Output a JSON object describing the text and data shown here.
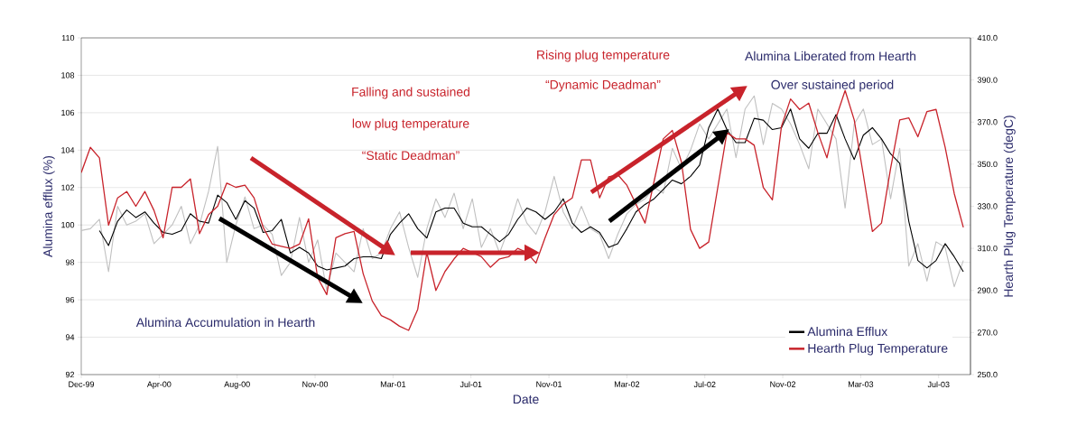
{
  "chart_data": {
    "type": "line",
    "xlabel": "Date",
    "ylabel": "Alumina efflux (%)",
    "y2label": "Hearth Plug Temperature (degC)",
    "x": [
      "1999-12-05",
      "1999-12-19",
      "2000-01-02",
      "2000-01-16",
      "2000-01-30",
      "2000-02-13",
      "2000-02-27",
      "2000-03-12",
      "2000-03-26",
      "2000-04-09",
      "2000-04-23",
      "2000-05-07",
      "2000-05-21",
      "2000-06-04",
      "2000-06-18",
      "2000-07-02",
      "2000-07-16",
      "2000-07-30",
      "2000-08-13",
      "2000-08-27",
      "2000-09-10",
      "2000-09-24",
      "2000-10-08",
      "2000-10-22",
      "2000-11-05",
      "2000-11-19",
      "2000-12-03",
      "2000-12-17",
      "2000-12-31",
      "2001-01-14",
      "2001-01-28",
      "2001-02-11",
      "2001-02-25",
      "2001-03-11",
      "2001-03-25",
      "2001-04-08",
      "2001-04-22",
      "2001-05-06",
      "2001-05-20",
      "2001-06-03",
      "2001-06-17",
      "2001-07-01",
      "2001-07-15",
      "2001-07-29",
      "2001-08-12",
      "2001-08-26",
      "2001-09-09",
      "2001-09-23",
      "2001-10-07",
      "2001-10-21",
      "2001-11-04",
      "2001-11-18",
      "2001-12-02",
      "2001-12-16",
      "2001-12-30",
      "2002-01-13",
      "2002-01-27",
      "2002-02-10",
      "2002-02-24",
      "2002-03-10",
      "2002-03-24",
      "2002-04-07",
      "2002-04-21",
      "2002-05-05",
      "2002-05-19",
      "2002-06-02",
      "2002-06-16",
      "2002-06-30",
      "2002-07-14",
      "2002-07-28",
      "2002-08-11",
      "2002-08-25",
      "2002-09-08",
      "2002-09-22",
      "2002-10-06",
      "2002-10-20",
      "2002-11-03",
      "2002-11-17",
      "2002-12-01",
      "2002-12-15",
      "2002-12-29",
      "2003-01-12",
      "2003-01-26",
      "2003-02-09",
      "2003-02-23",
      "2003-03-09",
      "2003-03-23",
      "2003-04-06",
      "2003-04-20",
      "2003-05-04",
      "2003-05-18",
      "2003-06-01",
      "2003-06-15",
      "2003-06-29",
      "2003-07-13",
      "2003-07-27",
      "2003-08-10",
      "2003-08-24"
    ],
    "series": [
      {
        "color": "#c0c0c0",
        "values": [
          99.7,
          99.8,
          100.3,
          97.5,
          101,
          100,
          100.2,
          100.6,
          99,
          99.5,
          100,
          101,
          99,
          100,
          101.8,
          104.2,
          98,
          100,
          101.5,
          99.8,
          100,
          99.5,
          97.3,
          98,
          100.4,
          98,
          99.2,
          96.5,
          98.5,
          98,
          97.5,
          99.8,
          98.2,
          98.5,
          99.8,
          100.7,
          98.8,
          97.2,
          99.8,
          101.4,
          100.4,
          101.7,
          99.8,
          101.4,
          98.8,
          99.8,
          98.5,
          99.8,
          101.4,
          100.1,
          99.5,
          100.7,
          102.6,
          100.7,
          99.8,
          101.0,
          99.8,
          99.5,
          98.2,
          99.5,
          100.6,
          101.1,
          101.4,
          102.0,
          101.7,
          104.1,
          103.0,
          104.0,
          105.4,
          104.6,
          105.4,
          106.2,
          103.6,
          106.2,
          106.9,
          104.3,
          106.5,
          106.2,
          105.4,
          104.3,
          103.0,
          106.2,
          105.4,
          104.6,
          100.9,
          105.4,
          106.2,
          104.3,
          104.6,
          101.4,
          104.1,
          97.8,
          99.0,
          97.0,
          99.1,
          98.8,
          96.7,
          98.1
        ]
      },
      {
        "name": "Alumina Efflux",
        "color": "#000000",
        "values": [
          null,
          null,
          99.7,
          98.9,
          100.2,
          100.8,
          100.4,
          100.7,
          100.1,
          99.6,
          99.5,
          99.7,
          100.6,
          100.2,
          100.1,
          101.6,
          101.2,
          100.3,
          101.3,
          100.9,
          99.6,
          99.7,
          100.3,
          98.5,
          98.8,
          98.5,
          97.8,
          97.6,
          97.7,
          97.8,
          98.2,
          98.3,
          98.3,
          98.2,
          99.5,
          100.1,
          100.6,
          99.8,
          99.3,
          100.7,
          100.9,
          100.9,
          100.1,
          99.9,
          99.9,
          99.5,
          99.1,
          99.5,
          100.3,
          100.9,
          100.7,
          100.3,
          100.7,
          101.4,
          100.1,
          99.6,
          99.9,
          99.6,
          98.8,
          99.0,
          99.8,
          100.7,
          101.1,
          101.4,
          101.9,
          102.4,
          102.2,
          102.6,
          103.2,
          105.2,
          106.2,
          105.1,
          104.4,
          104.4,
          105.7,
          105.6,
          105.1,
          105.2,
          106.2,
          104.6,
          104.1,
          104.9,
          104.9,
          105.9,
          104.6,
          103.5,
          104.8,
          105.2,
          104.6,
          103.8,
          103.3,
          100.2,
          98.1,
          97.7,
          98.1,
          99.0,
          98.3,
          97.5
        ]
      },
      {
        "name": "Hearth Plug Temperature",
        "color": "#c8232b",
        "axis": "y2",
        "values": [
          346,
          358,
          353,
          321,
          334,
          337,
          330,
          337,
          328,
          315,
          339,
          339,
          343,
          317,
          326,
          330,
          341,
          339,
          340,
          334,
          320,
          312,
          311,
          310,
          312,
          324,
          296,
          288,
          315,
          317,
          318,
          298,
          285,
          278,
          276,
          273,
          271,
          281,
          308,
          290,
          299,
          305,
          310,
          308,
          306,
          301,
          305,
          306,
          310,
          308,
          303,
          315,
          326,
          331,
          334,
          352,
          352,
          334,
          344,
          345,
          340,
          331,
          322,
          342,
          362,
          366,
          351,
          319,
          310,
          313,
          339,
          365,
          362,
          362,
          359,
          339,
          333,
          368,
          381,
          376,
          379,
          365,
          353,
          372,
          385,
          371,
          345,
          318,
          322,
          348,
          371,
          372,
          363,
          375,
          376,
          358,
          336,
          320
        ]
      }
    ],
    "xlim": [
      "1999-12-05",
      "2003-09-04"
    ],
    "xticks": [
      {
        "value": "1999-12-05",
        "label": "Dec-99"
      },
      {
        "value": "2000-04-03",
        "label": "Apr-00"
      },
      {
        "value": "2000-08-01",
        "label": "Aug-00"
      },
      {
        "value": "2000-11-29",
        "label": "Nov-00"
      },
      {
        "value": "2001-03-29",
        "label": "Mar-01"
      },
      {
        "value": "2001-07-27",
        "label": "Jul-01"
      },
      {
        "value": "2001-11-24",
        "label": "Nov-01"
      },
      {
        "value": "2002-03-24",
        "label": "Mar-02"
      },
      {
        "value": "2002-07-22",
        "label": "Jul-02"
      },
      {
        "value": "2002-11-19",
        "label": "Nov-02"
      },
      {
        "value": "2003-03-19",
        "label": "Mar-03"
      },
      {
        "value": "2003-07-17",
        "label": "Jul-03"
      }
    ],
    "ylim": [
      92,
      110
    ],
    "yticks": [
      92,
      94,
      96,
      98,
      100,
      102,
      104,
      106,
      108,
      110
    ],
    "y2lim": [
      250,
      410
    ],
    "y2ticks": [
      {
        "value": 250,
        "label": "250.0"
      },
      {
        "value": 270,
        "label": "270.0"
      },
      {
        "value": 290,
        "label": "290.0"
      },
      {
        "value": 310,
        "label": "310.0"
      },
      {
        "value": 330,
        "label": "330.0"
      },
      {
        "value": 350,
        "label": "350.0"
      },
      {
        "value": 370,
        "label": "370.0"
      },
      {
        "value": 390,
        "label": "390.0"
      },
      {
        "value": 410,
        "label": "410.0"
      }
    ],
    "grid": "y",
    "legend": "bottom right",
    "marker": "none",
    "annotations": [
      "Alumina Accumulation in Hearth",
      "Falling and sustained",
      "low plug temperature",
      "“Static Deadman”",
      "Rising plug temperature",
      "“Dynamic Deadman”",
      "Alumina Liberated from Hearth",
      "Over sustained period"
    ]
  }
}
